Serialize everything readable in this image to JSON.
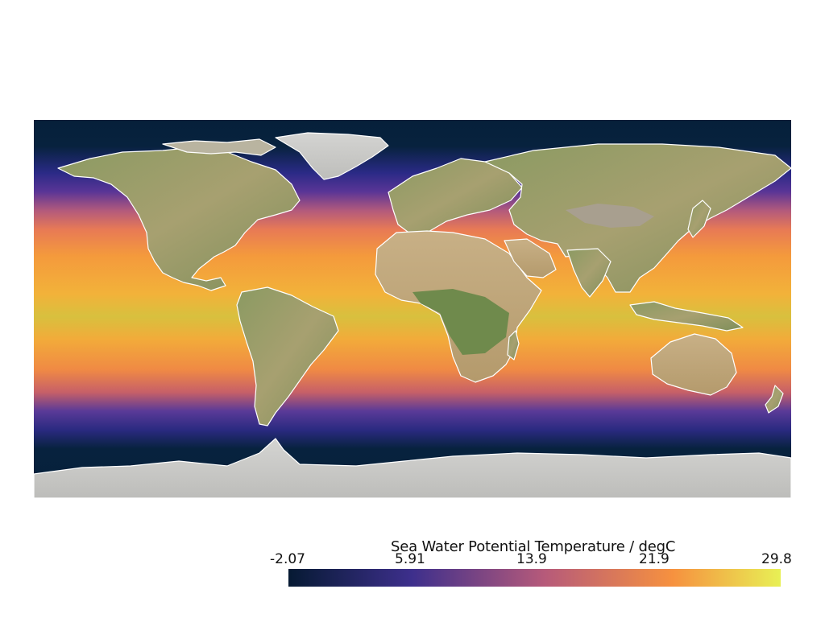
{
  "map": {
    "projection": "equirectangular",
    "field": "sea-water-potential-temperature",
    "land_style": "shaded-relief",
    "coastline_color": "#ffffff"
  },
  "colorbar": {
    "title": "Sea Water Potential Temperature / degC",
    "ticks": [
      "-2.07",
      "5.91",
      "13.9",
      "21.9",
      "29.8"
    ],
    "min": -2.07,
    "max": 29.8,
    "colormap": "plasma-like",
    "colors": {
      "low": "#061a33",
      "mid_low": "#3d2f8c",
      "mid": "#b65a7a",
      "mid_high": "#f6913f",
      "high": "#e8f055"
    }
  }
}
